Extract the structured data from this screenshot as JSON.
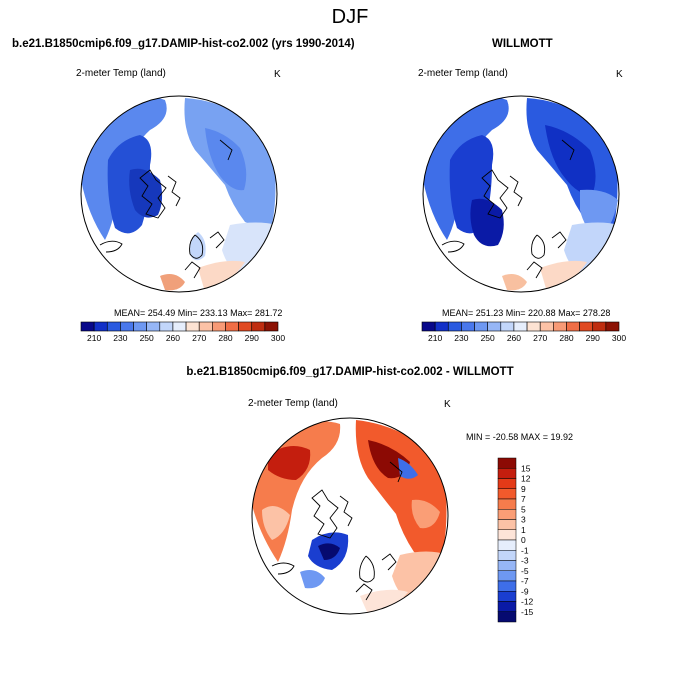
{
  "figure": {
    "title": "DJF",
    "left_panel_title": "b.e21.B1850cmip6.f09_g17.DAMIP-hist-co2.002 (yrs 1990-2014)",
    "right_panel_title": "WILLMOTT",
    "diff_panel_title": "b.e21.B1850cmip6.f09_g17.DAMIP-hist-co2.002 - WILLMOTT"
  },
  "panels": [
    {
      "id": "model",
      "variable": "2-meter Temp (land)",
      "units": "K",
      "stats": "MEAN= 254.49  Min= 233.13  Max= 281.72"
    },
    {
      "id": "obs",
      "variable": "2-meter Temp (land)",
      "units": "K",
      "stats": "MEAN= 251.23  Min= 220.88  Max= 278.28"
    },
    {
      "id": "diff",
      "variable": "2-meter Temp (land)",
      "units": "K",
      "stats": "MIN = -20.58 MAX =  19.92"
    }
  ],
  "abs_colorbar": {
    "labels": [
      "210",
      "230",
      "250",
      "260",
      "270",
      "280",
      "290",
      "300"
    ],
    "colors": [
      "#08088a",
      "#1230c8",
      "#2a5ae0",
      "#4a78ec",
      "#6e98f2",
      "#96b6f6",
      "#c2d6fa",
      "#e6eefc",
      "#fde3d3",
      "#fcc2a6",
      "#f89a76",
      "#f06e46",
      "#e04a22",
      "#bf2d10",
      "#8c1204"
    ]
  },
  "diff_colorbar": {
    "labels": [
      "15",
      "12",
      "9",
      "7",
      "5",
      "3",
      "1",
      "0",
      "-1",
      "-3",
      "-5",
      "-7",
      "-9",
      "-12",
      "-15"
    ],
    "colors": [
      "#8c0a04",
      "#c41e0e",
      "#e43a18",
      "#f25a2c",
      "#f67c4c",
      "#fa9e76",
      "#fcc2a6",
      "#fde4d8",
      "#e6eefc",
      "#c2d6fa",
      "#96b6f6",
      "#6e98f2",
      "#3e6ee8",
      "#1a3ed0",
      "#0a1aa6",
      "#060a70"
    ]
  }
}
